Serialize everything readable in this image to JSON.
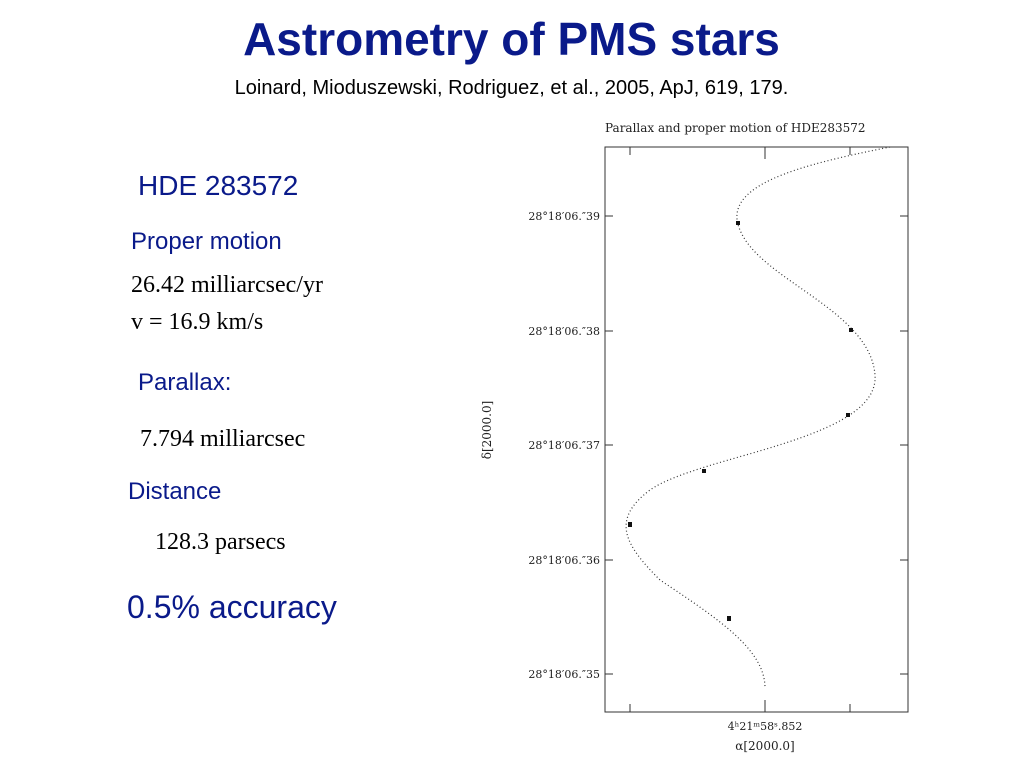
{
  "header": {
    "title": "Astrometry  of  PMS  stars",
    "citation": "Loinard, Mioduszewski, Rodriguez, et al., 2005, ApJ, 619, 179."
  },
  "body": {
    "star": "HDE 283572",
    "proper_motion": {
      "heading": "Proper motion",
      "lines": [
        "26.42 milliarcsec/yr",
        "v = 16.9 km/s"
      ]
    },
    "parallax": {
      "heading": "Parallax:",
      "value": "7.794 milliarcsec"
    },
    "distance": {
      "heading": "Distance",
      "value": "128.3 parsecs"
    },
    "accuracy": "0.5% accuracy"
  },
  "figure": {
    "title": "Parallax and proper motion of HDE283572",
    "y_label": "δ[2000.0]",
    "x_label": "α[2000.0]",
    "y_tick_labels": [
      "28°18′06.″39",
      "28°18′06.″38",
      "28°18′06.″37",
      "28°18′06.″36",
      "28°18′06.″35"
    ],
    "x_tick_label": "4ʰ21ᵐ58ˢ.852"
  }
}
